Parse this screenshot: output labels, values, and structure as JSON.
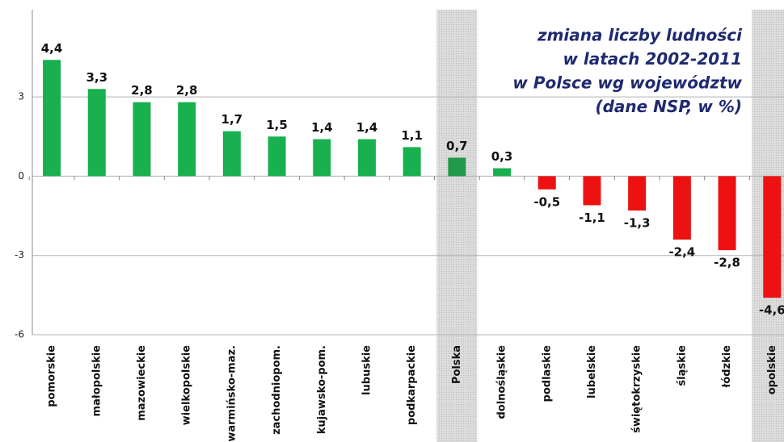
{
  "chart_data": {
    "type": "bar",
    "title": [
      "zmiana liczby ludności",
      "w latach 2002-2011",
      "w Polsce wg województw",
      "(dane NSP, w %)"
    ],
    "categories": [
      "pomorskie",
      "małopolskie",
      "mazowieckie",
      "wielkopolskie",
      "warmińsko-maz.",
      "zachodniopom.",
      "kujawsko-pom.",
      "lubuskie",
      "podkarpackie",
      "Polska",
      "dolnośląskie",
      "podlaskie",
      "lubelskie",
      "świętokrzyskie",
      "śląskie",
      "łódzkie",
      "opolskie"
    ],
    "values": [
      4.4,
      3.3,
      2.8,
      2.8,
      1.7,
      1.5,
      1.4,
      1.4,
      1.1,
      0.7,
      0.3,
      -0.5,
      -1.1,
      -1.3,
      -2.4,
      -2.8,
      -4.6
    ],
    "value_labels": [
      "4,4",
      "3,3",
      "2,8",
      "2,8",
      "1,7",
      "1,5",
      "1,4",
      "1,4",
      "1,1",
      "0,7",
      "0,3",
      "-0,5",
      "-1,1",
      "-1,3",
      "-2,4",
      "-2,8",
      "-4,6"
    ],
    "colors": [
      "#19b04f",
      "#19b04f",
      "#19b04f",
      "#19b04f",
      "#19b04f",
      "#19b04f",
      "#19b04f",
      "#19b04f",
      "#19b04f",
      "#21994a",
      "#19b04f",
      "#ee1111",
      "#ee1111",
      "#ee1111",
      "#ee1111",
      "#ee1111",
      "#ee1111"
    ],
    "highlighted": [
      9,
      16
    ],
    "ylim": [
      -6,
      6.3
    ],
    "yticks": [
      -6,
      -3,
      0,
      3
    ],
    "grid": true
  }
}
